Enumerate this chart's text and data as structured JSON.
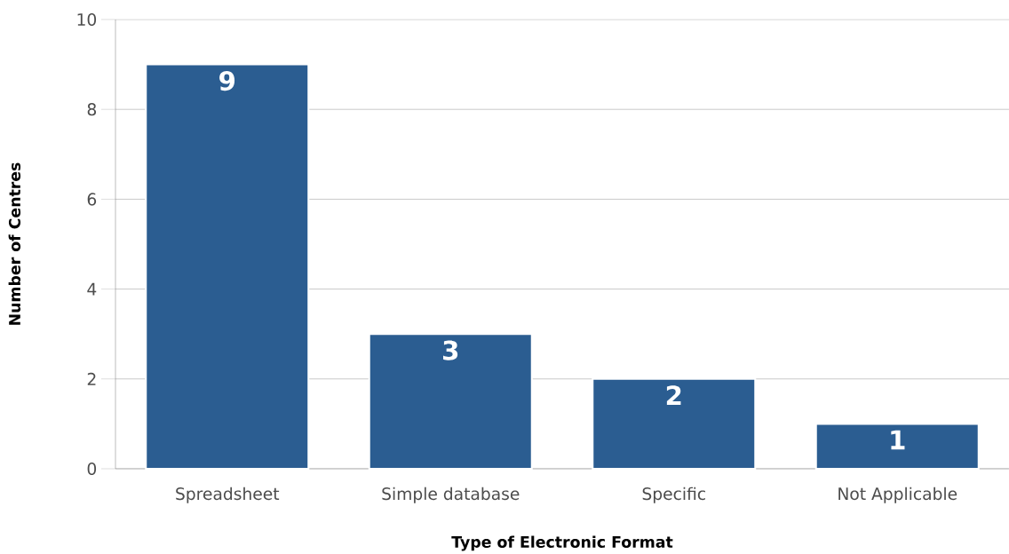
{
  "chart_data": {
    "type": "bar",
    "xlabel": "Type of Electronic Format",
    "ylabel": "Number of Centres",
    "categories": [
      "Spreadsheet",
      "Simple database",
      "Specific",
      "Not Applicable"
    ],
    "values": [
      9,
      3,
      2,
      1
    ],
    "color": "#2b5d91",
    "ylim": [
      0,
      10
    ],
    "yticks": [
      0,
      2,
      4,
      6,
      8,
      10
    ],
    "grid": "y",
    "data_labels": true
  }
}
